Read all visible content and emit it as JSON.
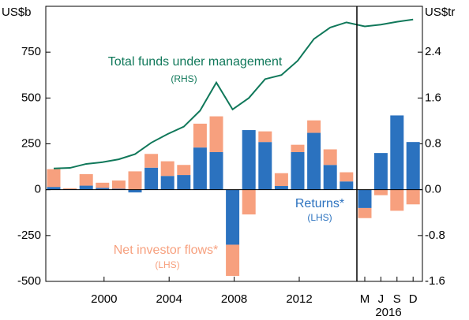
{
  "chart_data": {
    "type": "bar",
    "stacked": true,
    "y_unit": "US$b",
    "y2_unit": "US$tr",
    "categories": [
      null,
      null,
      null,
      "2000",
      null,
      null,
      null,
      "2004",
      null,
      null,
      null,
      "2008",
      null,
      null,
      null,
      "2012",
      null,
      null,
      null,
      "M",
      "J",
      "S",
      "D"
    ],
    "category_group_label": "2016",
    "series": [
      {
        "name": "Returns*",
        "name_note": "(LHS)",
        "type": "bar",
        "color": "#2b72bf",
        "values": [
          15,
          3,
          22,
          10,
          5,
          -15,
          120,
          75,
          80,
          230,
          205,
          -300,
          325,
          260,
          20,
          205,
          310,
          135,
          45,
          -100,
          200,
          405,
          260
        ]
      },
      {
        "name": "Net investor flows*",
        "name_note": "(LHS)",
        "type": "bar",
        "color": "#f7a07e",
        "values": [
          97,
          5,
          63,
          28,
          45,
          100,
          75,
          80,
          55,
          130,
          195,
          -170,
          -135,
          58,
          70,
          40,
          68,
          85,
          50,
          -55,
          -30,
          -115,
          -80
        ]
      },
      {
        "name": "Total funds under management",
        "name_note": "(RHS)",
        "type": "line",
        "axis": "y2",
        "color": "#10785a",
        "values": [
          0.37,
          0.38,
          0.45,
          0.48,
          0.53,
          0.62,
          0.82,
          0.97,
          1.1,
          1.38,
          1.87,
          1.4,
          1.6,
          1.93,
          2.0,
          2.25,
          2.63,
          2.83,
          2.92,
          2.85,
          2.88,
          2.93,
          2.97
        ]
      }
    ],
    "ylim": [
      -500,
      1000
    ],
    "yticks": [
      -500,
      -250,
      0,
      250,
      500,
      750
    ],
    "y2lim": [
      -1.6,
      3.2
    ],
    "y2ticks": [
      -1.6,
      -0.8,
      {
        "value": 0,
        "label": "0.0"
      },
      0.8,
      1.6,
      2.4
    ]
  }
}
